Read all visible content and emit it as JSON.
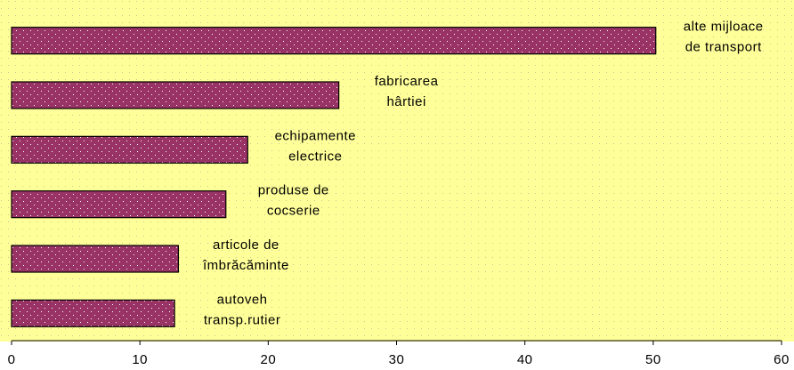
{
  "chart_data": {
    "type": "bar",
    "orientation": "horizontal",
    "categories": [
      [
        "alte mijloace",
        "de transport"
      ],
      [
        "fabricarea",
        "hârtiei"
      ],
      [
        "echipamente",
        "electrice"
      ],
      [
        "produse de",
        "cocserie"
      ],
      [
        "articole de",
        "îmbrăcăminte"
      ],
      [
        "autoveh",
        "transp.rutier"
      ]
    ],
    "values": [
      50.2,
      25.5,
      18.4,
      16.7,
      13.0,
      12.7
    ],
    "color": "#993366",
    "background": "#ffff99",
    "xlim": [
      0,
      60
    ],
    "xticks": [
      0,
      10,
      20,
      30,
      40,
      50,
      60
    ]
  }
}
